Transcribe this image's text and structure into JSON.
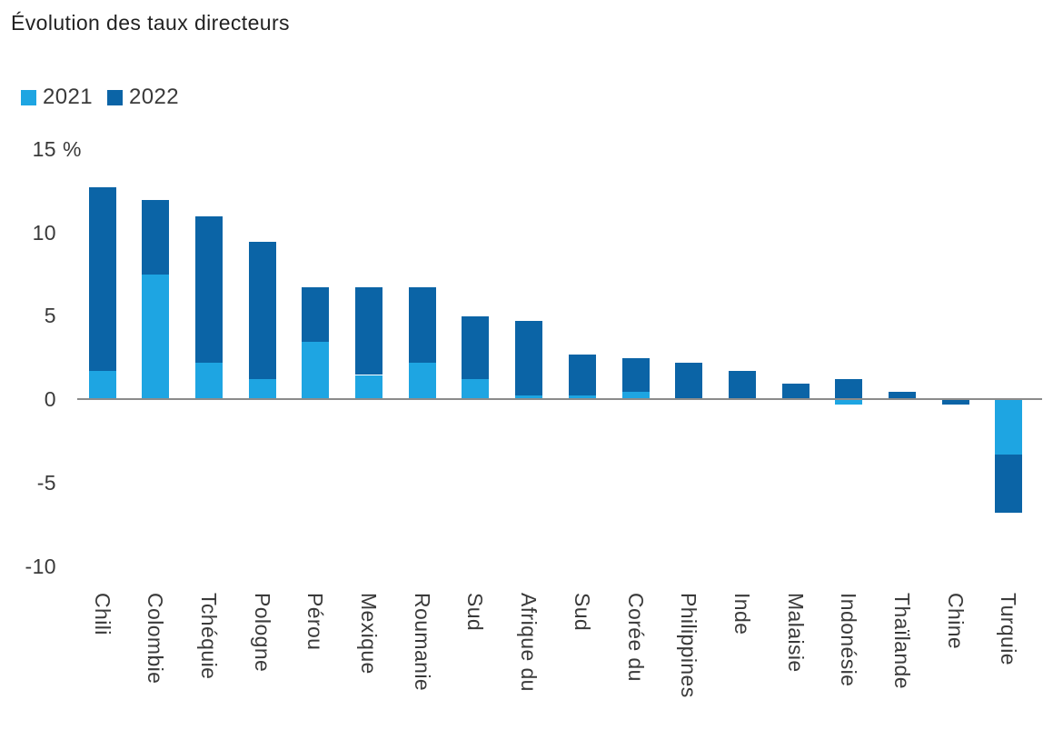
{
  "chart_data": {
    "type": "bar",
    "stacked": true,
    "title": "Évolution des taux directeurs",
    "categories": [
      "Chili",
      "Colombie",
      "Tchéquie",
      "Pologne",
      "Pérou",
      "Mexique",
      "Roumanie",
      "Sud",
      "Afrique du",
      "Sud",
      "Corée du",
      "Philippines",
      "Inde",
      "Malaisie",
      "Indonésie",
      "Thaïlande",
      "Chine",
      "Turquie"
    ],
    "series": [
      {
        "name": "2021",
        "color": "#1EA5E2",
        "values": [
          1.75,
          7.5,
          2.25,
          1.25,
          3.5,
          1.5,
          2.25,
          1.25,
          0.25,
          0.25,
          0.5,
          0,
          0,
          0,
          -0.25,
          0,
          0,
          -3.25
        ]
      },
      {
        "name": "2022",
        "color": "#0B64A6",
        "values": [
          11,
          4.5,
          8.75,
          8.25,
          3.25,
          5.25,
          4.5,
          3.75,
          4.5,
          2.5,
          2,
          2.25,
          1.75,
          1,
          1.25,
          0.5,
          -0.25,
          -3.5
        ]
      }
    ],
    "y_axis": {
      "ticks": [
        15,
        10,
        5,
        0,
        -5,
        -10
      ],
      "unit_suffix": "%",
      "ylim": [
        -10,
        15
      ]
    },
    "x_axis": {
      "label_rotation": 90
    },
    "grid": false,
    "legend_position": "top-left",
    "axis_line_color": "#8B8B8B",
    "text_color": "#3A3A3A"
  }
}
